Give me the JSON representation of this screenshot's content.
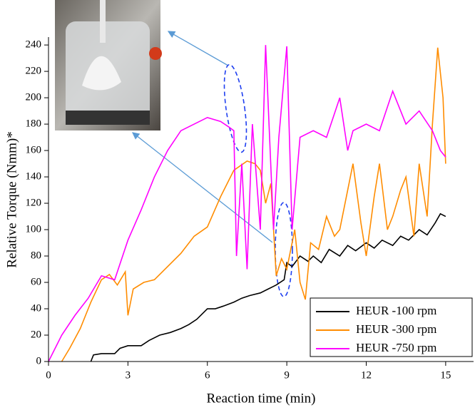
{
  "chart_data": {
    "type": "line",
    "xlabel": "Reaction time (min)",
    "ylabel": "Relative Torque (Nmm)*",
    "xlim": [
      0,
      16
    ],
    "ylim": [
      0,
      246
    ],
    "xticks": [
      0,
      3,
      6,
      9,
      12,
      15
    ],
    "yticks": [
      0,
      20,
      40,
      60,
      80,
      100,
      120,
      140,
      160,
      180,
      200,
      220,
      240
    ],
    "legend": "lower right",
    "series": [
      {
        "name": "HEUR -100 rpm",
        "color": "#000000",
        "x": [
          1.6,
          1.7,
          2.0,
          2.5,
          2.7,
          3.0,
          3.5,
          3.8,
          4.2,
          4.6,
          5.0,
          5.3,
          5.6,
          6.0,
          6.3,
          6.6,
          7.0,
          7.3,
          7.6,
          8.0,
          8.3,
          8.6,
          8.9,
          9.0,
          9.2,
          9.5,
          9.8,
          10.0,
          10.3,
          10.6,
          11.0,
          11.3,
          11.6,
          12.0,
          12.3,
          12.6,
          13.0,
          13.3,
          13.6,
          14.0,
          14.3,
          14.6,
          14.8,
          15.0
        ],
        "values": [
          0,
          5,
          6,
          6,
          10,
          12,
          12,
          16,
          20,
          22,
          25,
          28,
          32,
          40,
          40,
          42,
          45,
          48,
          50,
          52,
          55,
          58,
          62,
          75,
          72,
          80,
          76,
          80,
          75,
          85,
          80,
          88,
          84,
          90,
          86,
          92,
          88,
          95,
          92,
          100,
          96,
          105,
          112,
          110
        ]
      },
      {
        "name": "HEUR -300 rpm",
        "color": "#ff8c00",
        "x": [
          0.5,
          0.8,
          1.2,
          1.6,
          2.0,
          2.3,
          2.6,
          2.9,
          3.0,
          3.2,
          3.6,
          4.0,
          4.5,
          5.0,
          5.5,
          6.0,
          6.5,
          7.0,
          7.5,
          7.8,
          8.0,
          8.2,
          8.4,
          8.6,
          8.8,
          9.0,
          9.3,
          9.5,
          9.7,
          9.9,
          10.2,
          10.5,
          10.8,
          11.0,
          11.3,
          11.5,
          11.8,
          12.0,
          12.3,
          12.5,
          12.8,
          13.0,
          13.3,
          13.5,
          13.8,
          14.0,
          14.3,
          14.5,
          14.7,
          14.9,
          15.0
        ],
        "values": [
          0,
          10,
          25,
          45,
          62,
          66,
          58,
          68,
          35,
          55,
          60,
          62,
          72,
          82,
          95,
          102,
          125,
          145,
          152,
          150,
          145,
          120,
          135,
          65,
          78,
          70,
          100,
          60,
          47,
          90,
          85,
          110,
          95,
          100,
          130,
          150,
          105,
          80,
          125,
          150,
          100,
          110,
          130,
          140,
          95,
          150,
          110,
          180,
          238,
          200,
          150
        ]
      },
      {
        "name": "HEUR -750 rpm",
        "color": "#ff00ff",
        "x": [
          0,
          0.5,
          1.0,
          1.5,
          2.0,
          2.5,
          3.0,
          3.5,
          4.0,
          4.5,
          5.0,
          5.5,
          6.0,
          6.5,
          6.8,
          7.0,
          7.1,
          7.3,
          7.5,
          7.7,
          8.0,
          8.2,
          8.5,
          8.7,
          9.0,
          9.2,
          9.5,
          10.0,
          10.5,
          11.0,
          11.3,
          11.5,
          12.0,
          12.5,
          13.0,
          13.5,
          14.0,
          14.5,
          14.8,
          15.0
        ],
        "values": [
          0,
          20,
          35,
          48,
          65,
          62,
          92,
          115,
          140,
          160,
          175,
          180,
          185,
          182,
          178,
          175,
          80,
          150,
          70,
          180,
          100,
          240,
          100,
          170,
          239,
          100,
          170,
          175,
          170,
          200,
          160,
          175,
          180,
          175,
          205,
          180,
          190,
          175,
          160,
          155
        ]
      }
    ]
  }
}
